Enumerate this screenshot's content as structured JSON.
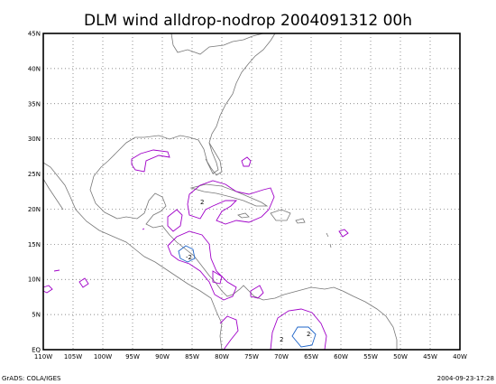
{
  "title": "DLM wind alldrop-nodrop 2004091312 00h",
  "footer_left": "GrADS: COLA/IGES",
  "footer_right": "2004-09-23-17:28",
  "map": {
    "lon_labels": [
      "110W",
      "105W",
      "100W",
      "95W",
      "90W",
      "85W",
      "80W",
      "75W",
      "70W",
      "65W",
      "60W",
      "55W",
      "50W",
      "45W",
      "40W"
    ],
    "lat_labels": [
      "EQ",
      "5N",
      "10N",
      "15N",
      "20N",
      "25N",
      "30N",
      "35N",
      "40N",
      "45N"
    ],
    "contour_labels": [
      "-2",
      "2",
      "2",
      "2"
    ],
    "colors": {
      "coastline": "#777777",
      "contour_primary": "#a000c8",
      "contour_secondary": "#1e64c8"
    },
    "grid": "on"
  }
}
